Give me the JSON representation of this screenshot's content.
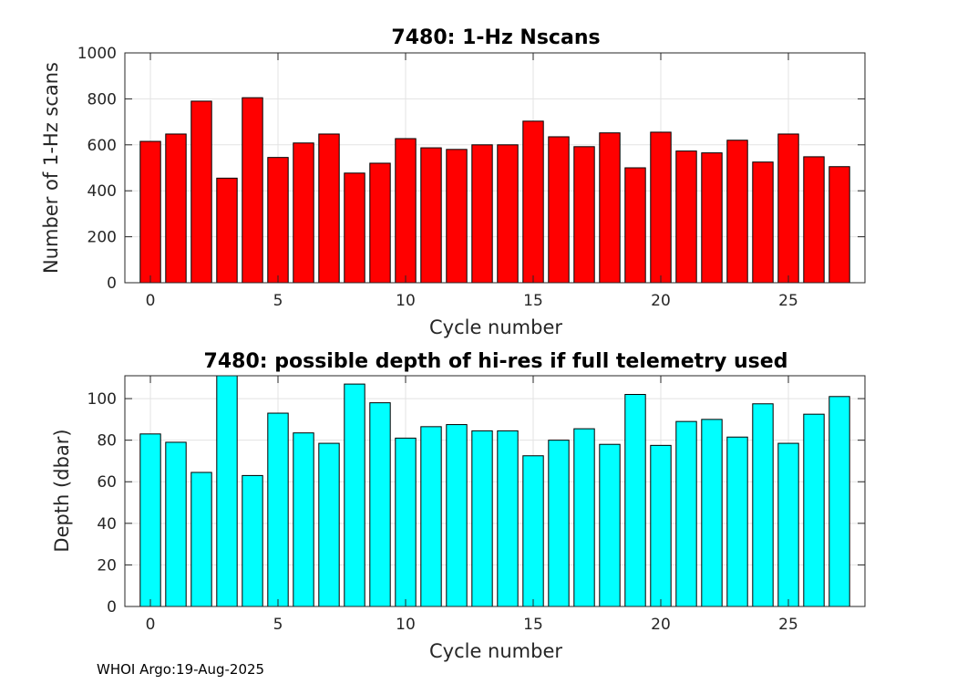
{
  "footer": "WHOI Argo:19-Aug-2025",
  "chart_data": [
    {
      "type": "bar",
      "title": "7480: 1-Hz Nscans",
      "xlabel": "Cycle number",
      "ylabel": "Number of 1-Hz scans",
      "color": "#ff0000",
      "x": [
        0,
        1,
        2,
        3,
        4,
        5,
        6,
        7,
        8,
        9,
        10,
        11,
        12,
        13,
        14,
        15,
        16,
        17,
        18,
        19,
        20,
        21,
        22,
        23,
        24,
        25,
        26,
        27
      ],
      "values": [
        615,
        647,
        790,
        455,
        805,
        545,
        608,
        647,
        477,
        520,
        627,
        587,
        580,
        600,
        600,
        703,
        635,
        592,
        652,
        500,
        655,
        573,
        565,
        620,
        525,
        647,
        548,
        505
      ],
      "xlim": [
        -1,
        28
      ],
      "ylim": [
        0,
        1000
      ],
      "xticks": [
        0,
        5,
        10,
        15,
        20,
        25
      ],
      "yticks": [
        0,
        200,
        400,
        600,
        800,
        1000
      ],
      "grid": true
    },
    {
      "type": "bar",
      "title": "7480: possible depth of hi-res if full telemetry used",
      "xlabel": "Cycle number",
      "ylabel": "Depth (dbar)",
      "color": "#00ffff",
      "x": [
        0,
        1,
        2,
        3,
        4,
        5,
        6,
        7,
        8,
        9,
        10,
        11,
        12,
        13,
        14,
        15,
        16,
        17,
        18,
        19,
        20,
        21,
        22,
        23,
        24,
        25,
        26,
        27
      ],
      "values": [
        83,
        79,
        64.5,
        111,
        63,
        93,
        83.5,
        78.5,
        107,
        98,
        81,
        86.5,
        87.5,
        84.5,
        84.5,
        72.5,
        80,
        85.5,
        78,
        102,
        77.5,
        89,
        90,
        81.5,
        97.5,
        78.5,
        92.5,
        101
      ],
      "xlim": [
        -1,
        28
      ],
      "ylim": [
        0,
        111
      ],
      "xticks": [
        0,
        5,
        10,
        15,
        20,
        25
      ],
      "yticks": [
        0,
        20,
        40,
        60,
        80,
        100
      ],
      "grid": true
    }
  ]
}
